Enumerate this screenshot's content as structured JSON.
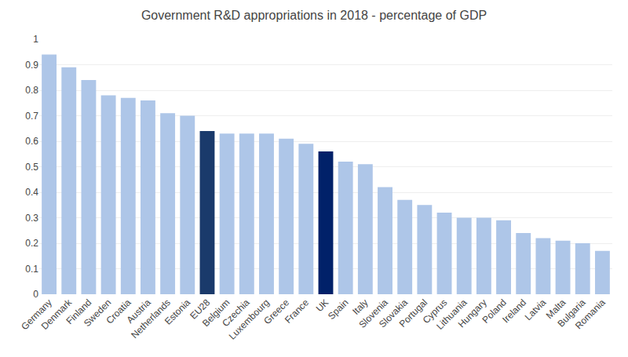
{
  "chart_data": {
    "type": "bar",
    "title": "Government R&D appropriations in 2018 - percentage of GDP",
    "categories": [
      "Germany",
      "Denmark",
      "Finland",
      "Sweden",
      "Croatia",
      "Austria",
      "Netherlands",
      "Estonia",
      "EU28",
      "Belgium",
      "Czechia",
      "Luxembourg",
      "Greece",
      "France",
      "UK",
      "Spain",
      "Italy",
      "Slovenia",
      "Slovakia",
      "Portugal",
      "Cyprus",
      "Lithuania",
      "Hungary",
      "Poland",
      "Ireland",
      "Latvia",
      "Malta",
      "Bulgaria",
      "Romania"
    ],
    "values": [
      0.94,
      0.89,
      0.84,
      0.78,
      0.77,
      0.76,
      0.71,
      0.7,
      0.64,
      0.63,
      0.63,
      0.63,
      0.61,
      0.59,
      0.56,
      0.52,
      0.51,
      0.42,
      0.37,
      0.35,
      0.32,
      0.3,
      0.3,
      0.29,
      0.24,
      0.22,
      0.21,
      0.2,
      0.17
    ],
    "colors": [
      "#aec6e8",
      "#aec6e8",
      "#aec6e8",
      "#aec6e8",
      "#aec6e8",
      "#aec6e8",
      "#aec6e8",
      "#aec6e8",
      "#1a3a6b",
      "#aec6e8",
      "#aec6e8",
      "#aec6e8",
      "#aec6e8",
      "#aec6e8",
      "#012169",
      "#aec6e8",
      "#aec6e8",
      "#aec6e8",
      "#aec6e8",
      "#aec6e8",
      "#aec6e8",
      "#aec6e8",
      "#aec6e8",
      "#aec6e8",
      "#aec6e8",
      "#aec6e8",
      "#aec6e8",
      "#aec6e8",
      "#aec6e8"
    ],
    "ylim": [
      0,
      1.0
    ],
    "yticks": [
      0,
      0.1,
      0.2,
      0.3,
      0.4,
      0.5,
      0.6,
      0.7,
      0.8,
      0.9,
      1
    ],
    "grid": true
  }
}
